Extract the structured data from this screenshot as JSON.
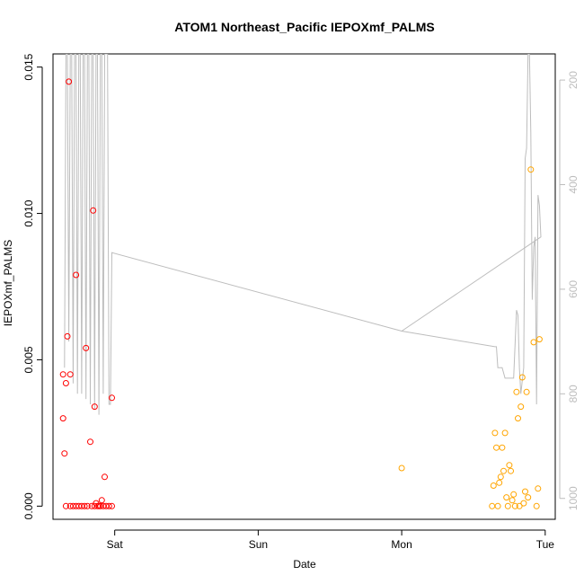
{
  "chart_data": {
    "type": "scatter",
    "title": "ATOM1 Northeast_Pacific IEPOXmf_PALMS",
    "xlabel": "Date",
    "ylabel": "IEPOXmf_PALMS",
    "x_ticks": [
      "Sat",
      "Sun",
      "Mon",
      "Tue"
    ],
    "x_tick_values": [
      0,
      1,
      2,
      3
    ],
    "xlim": [
      -0.43,
      3.07
    ],
    "y_ticks": [
      "0.000",
      "0.005",
      "0.010",
      "0.015"
    ],
    "y_tick_values": [
      0,
      0.005,
      0.01,
      0.015
    ],
    "ylim": [
      -0.00045,
      0.01545
    ],
    "y2_ticks": [
      "200",
      "400",
      "600",
      "800",
      "1000"
    ],
    "y2_tick_values": [
      200,
      400,
      600,
      800,
      1000
    ],
    "y2lim": [
      1040,
      150
    ],
    "grid": false,
    "series": [
      {
        "color": "#ff0000",
        "marker": "open-circle",
        "points": [
          [
            -0.36,
            0.0045
          ],
          [
            -0.36,
            0.003
          ],
          [
            -0.35,
            0.0018
          ],
          [
            -0.34,
            0.0042
          ],
          [
            -0.33,
            0.0058
          ],
          [
            -0.32,
            0.0145
          ],
          [
            -0.31,
            0.0045
          ],
          [
            -0.27,
            0.0079
          ],
          [
            -0.2,
            0.0054
          ],
          [
            -0.17,
            0.0022
          ],
          [
            -0.15,
            0.0101
          ],
          [
            -0.14,
            0.0034
          ],
          [
            -0.07,
            0.001
          ],
          [
            -0.02,
            0.0037
          ],
          [
            -0.34,
            0.0
          ],
          [
            -0.31,
            0.0
          ],
          [
            -0.29,
            0.0
          ],
          [
            -0.27,
            0.0
          ],
          [
            -0.25,
            0.0
          ],
          [
            -0.23,
            0.0
          ],
          [
            -0.21,
            0.0
          ],
          [
            -0.19,
            0.0
          ],
          [
            -0.16,
            0.0
          ],
          [
            -0.14,
            0.0
          ],
          [
            -0.13,
            0.0001
          ],
          [
            -0.12,
            0.0
          ],
          [
            -0.11,
            0.0
          ],
          [
            -0.1,
            0.0
          ],
          [
            -0.09,
            0.0002
          ],
          [
            -0.08,
            0.0
          ],
          [
            -0.06,
            0.0
          ],
          [
            -0.04,
            0.0
          ],
          [
            -0.02,
            0.0
          ]
        ]
      },
      {
        "color": "#ffa500",
        "marker": "open-circle",
        "points": [
          [
            2.0,
            0.0013
          ],
          [
            2.63,
            0.0
          ],
          [
            2.64,
            0.0007
          ],
          [
            2.65,
            0.0025
          ],
          [
            2.66,
            0.002
          ],
          [
            2.67,
            0.0
          ],
          [
            2.68,
            0.0008
          ],
          [
            2.69,
            0.001
          ],
          [
            2.7,
            0.002
          ],
          [
            2.71,
            0.0012
          ],
          [
            2.72,
            0.0025
          ],
          [
            2.73,
            0.0003
          ],
          [
            2.74,
            0.0
          ],
          [
            2.75,
            0.0014
          ],
          [
            2.76,
            0.0012
          ],
          [
            2.77,
            0.0002
          ],
          [
            2.78,
            0.0004
          ],
          [
            2.79,
            0.0
          ],
          [
            2.8,
            0.0039
          ],
          [
            2.81,
            0.003
          ],
          [
            2.82,
            0.0
          ],
          [
            2.83,
            0.0034
          ],
          [
            2.84,
            0.0044
          ],
          [
            2.85,
            0.0001
          ],
          [
            2.86,
            0.0005
          ],
          [
            2.87,
            0.0039
          ],
          [
            2.88,
            0.0003
          ],
          [
            2.9,
            0.0115
          ],
          [
            2.92,
            0.0056
          ],
          [
            2.94,
            0.0
          ],
          [
            2.95,
            0.0006
          ],
          [
            2.96,
            0.0057
          ]
        ]
      },
      {
        "color": "#bdbdbd",
        "marker": "line",
        "axis": "y2",
        "points": [
          [
            -0.35,
            750
          ],
          [
            -0.34,
            150
          ],
          [
            -0.33,
            150
          ],
          [
            -0.32,
            700
          ],
          [
            -0.31,
            150
          ],
          [
            -0.3,
            150
          ],
          [
            -0.29,
            780
          ],
          [
            -0.28,
            150
          ],
          [
            -0.27,
            150
          ],
          [
            -0.26,
            800
          ],
          [
            -0.25,
            150
          ],
          [
            -0.24,
            150
          ],
          [
            -0.23,
            800
          ],
          [
            -0.22,
            150
          ],
          [
            -0.21,
            150
          ],
          [
            -0.2,
            810
          ],
          [
            -0.19,
            150
          ],
          [
            -0.18,
            150
          ],
          [
            -0.17,
            820
          ],
          [
            -0.16,
            150
          ],
          [
            -0.15,
            150
          ],
          [
            -0.14,
            830
          ],
          [
            -0.13,
            150
          ],
          [
            -0.12,
            150
          ],
          [
            -0.11,
            840
          ],
          [
            -0.1,
            150
          ],
          [
            -0.09,
            150
          ],
          [
            -0.08,
            800
          ],
          [
            -0.07,
            150
          ],
          [
            -0.05,
            150
          ],
          [
            -0.04,
            820
          ],
          [
            -0.03,
            820
          ],
          [
            -0.02,
            530
          ],
          [
            2.0,
            680
          ],
          [
            2.65,
            710
          ],
          [
            2.66,
            710
          ],
          [
            2.67,
            750
          ],
          [
            2.7,
            750
          ],
          [
            2.72,
            770
          ],
          [
            2.78,
            770
          ],
          [
            2.8,
            640
          ],
          [
            2.81,
            650
          ],
          [
            2.82,
            750
          ],
          [
            2.83,
            800
          ],
          [
            2.85,
            750
          ],
          [
            2.86,
            350
          ],
          [
            2.87,
            330
          ],
          [
            2.88,
            150
          ],
          [
            2.89,
            150
          ],
          [
            2.9,
            300
          ],
          [
            2.91,
            620
          ],
          [
            2.92,
            520
          ],
          [
            2.93,
            500
          ],
          [
            2.94,
            820
          ],
          [
            2.95,
            420
          ],
          [
            2.96,
            440
          ],
          [
            2.97,
            500
          ],
          [
            2.0,
            680
          ]
        ]
      }
    ]
  }
}
